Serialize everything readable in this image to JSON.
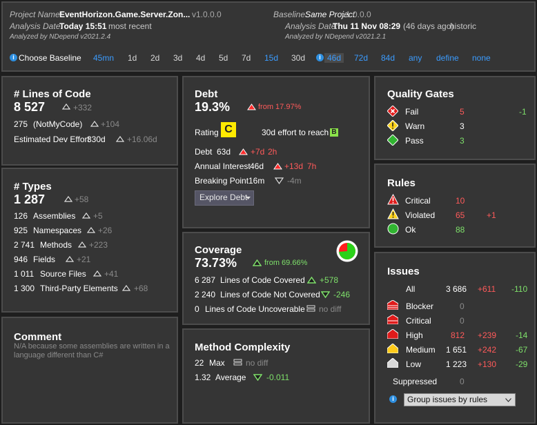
{
  "header": {
    "project_label": "Project Name:",
    "project_name": "EventHorizon.Game.Server.Zon...",
    "project_version": "v1.0.0.0",
    "baseline_label": "Baseline:",
    "baseline_name": "Same Project",
    "baseline_version": "v1.0.0.0",
    "analysis_label": "Analysis Date:",
    "analysis_date": "Today 15:51",
    "analysis_note": "most recent",
    "baseline_date_label": "Analysis Date:",
    "baseline_date": "Thu 11 Nov  08:29",
    "baseline_note": "(46 days ago)",
    "baseline_note2": "historic",
    "analyzed_by": "Analyzed by NDepend v2021.2.4",
    "baseline_analyzed_by": "Analyzed by NDepend v2021.2.1",
    "choose_baseline_label": "Choose Baseline",
    "baseline_options": [
      "45mn",
      "1d",
      "2d",
      "3d",
      "4d",
      "5d",
      "7d",
      "15d",
      "30d",
      "46d",
      "72d",
      "84d",
      "any",
      "define",
      "none"
    ]
  },
  "loc": {
    "title": "# Lines of Code",
    "value": "8 527",
    "delta": "+332",
    "notmycode_value": "275",
    "notmycode_label": "(NotMyCode)",
    "notmycode_delta": "+104",
    "effort_label": "Estimated Dev Effort",
    "effort_value": "330d",
    "effort_delta": "+16.06d"
  },
  "types": {
    "title": "# Types",
    "value": "1 287",
    "delta": "+58",
    "rows": [
      {
        "value": "126",
        "label": "Assemblies",
        "delta": "+5"
      },
      {
        "value": "925",
        "label": "Namespaces",
        "delta": "+26"
      },
      {
        "value": "2 741",
        "label": "Methods",
        "delta": "+223"
      },
      {
        "value": "946",
        "label": "Fields",
        "delta": "+21"
      },
      {
        "value": "1 011",
        "label": "Source Files",
        "delta": "+41"
      },
      {
        "value": "1 300",
        "label": "Third-Party Elements",
        "delta": "+68"
      }
    ]
  },
  "comment": {
    "title": "Comment",
    "text": "N/A because some assemblies are written in a language different than C#"
  },
  "debt": {
    "title": "Debt",
    "value": "19.3%",
    "from": "from 17.97%",
    "rating_label": "Rating",
    "rating": "C",
    "effort_label": "30d effort to reach",
    "effort_rating": "B",
    "debt_label": "Debt",
    "debt_value": "63d",
    "debt_delta": "+7d",
    "debt_delta2": "2h",
    "interest_label": "Annual Interest",
    "interest_value": "46d",
    "interest_delta": "+13d",
    "interest_delta2": "7h",
    "breaking_label": "Breaking Point",
    "breaking_value": "16m",
    "breaking_delta": "-4m",
    "explore_button": "Explore Debt"
  },
  "coverage": {
    "title": "Coverage",
    "value": "73.73%",
    "from": "from 69.66%",
    "rows": [
      {
        "value": "6 287",
        "label": "Lines of Code Covered",
        "delta": "+578"
      },
      {
        "value": "2 240",
        "label": "Lines of Code Not Covered",
        "delta": "-246"
      },
      {
        "value": "0",
        "label": "Lines of Code Uncoverable",
        "delta": "no diff"
      }
    ],
    "covered_percent": 73.73
  },
  "complexity": {
    "title": "Method Complexity",
    "max_value": "22",
    "max_label": "Max",
    "max_delta": "no diff",
    "avg_value": "1.32",
    "avg_label": "Average",
    "avg_delta": "-0.011"
  },
  "quality_gates": {
    "title": "Quality Gates",
    "rows": [
      {
        "label": "Fail",
        "value": "5",
        "delta": "-1"
      },
      {
        "label": "Warn",
        "value": "3",
        "delta": ""
      },
      {
        "label": "Pass",
        "value": "3",
        "delta": ""
      }
    ]
  },
  "rules": {
    "title": "Rules",
    "rows": [
      {
        "label": "Critical",
        "value": "10",
        "delta": ""
      },
      {
        "label": "Violated",
        "value": "65",
        "delta": "+1"
      },
      {
        "label": "Ok",
        "value": "88",
        "delta": ""
      }
    ]
  },
  "issues": {
    "title": "Issues",
    "all_label": "All",
    "all_value": "3 686",
    "all_delta_pos": "+611",
    "all_delta_neg": "-110",
    "rows": [
      {
        "label": "Blocker",
        "value": "0",
        "pos": "",
        "neg": ""
      },
      {
        "label": "Critical",
        "value": "0",
        "pos": "",
        "neg": ""
      },
      {
        "label": "High",
        "value": "812",
        "pos": "+239",
        "neg": "-14"
      },
      {
        "label": "Medium",
        "value": "1 651",
        "pos": "+242",
        "neg": "-67"
      },
      {
        "label": "Low",
        "value": "1 223",
        "pos": "+130",
        "neg": "-29"
      }
    ],
    "suppressed_label": "Suppressed",
    "suppressed_value": "0",
    "group_select": "Group issues by rules"
  },
  "colors": {
    "red": "#ff5a5a",
    "green": "#7ee06a",
    "blue": "#3b9cff",
    "rating_c": "#ffea00",
    "rating_b": "#8be34a"
  }
}
